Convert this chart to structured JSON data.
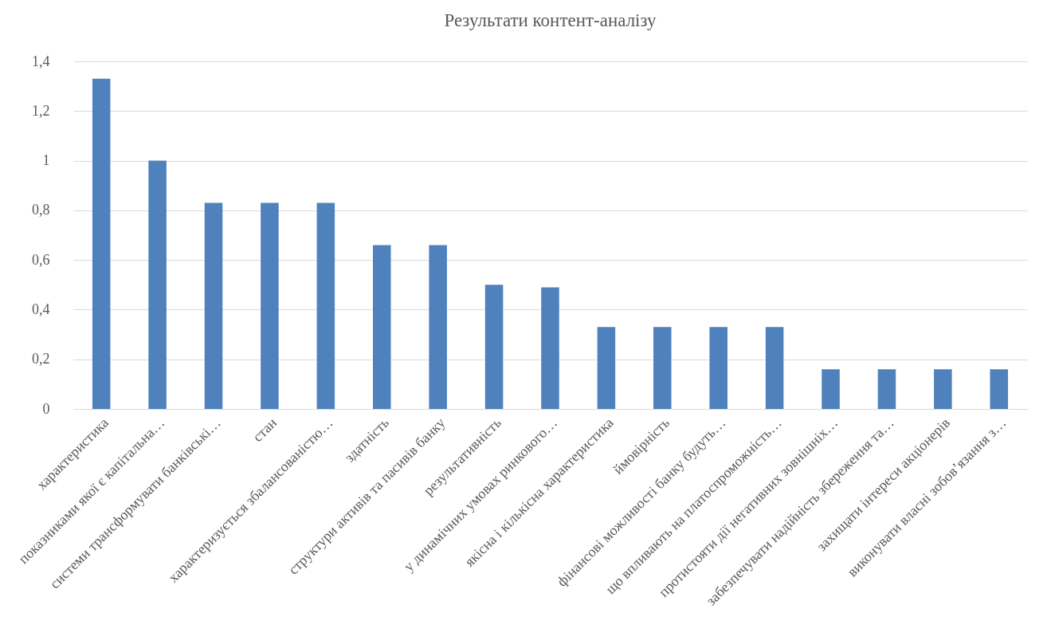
{
  "chart_data": {
    "type": "bar",
    "title": "Результати контент-аналізу",
    "categories": [
      "характеристика",
      "показниками якої є капітальна…",
      "системи трансформувати банківські…",
      "стан",
      "характеризується збалансованістю…",
      "здатність",
      "структури активів та пасивів банку",
      "результативність",
      "у динамічних умовах ринкового…",
      "якісна і кількісна характеристика",
      "ймовірність",
      "фінансові можливості банку будуть…",
      "що впливають на платоспроможність…",
      "протистояти дії негативних зовнішніх…",
      "забезпечувати надійність збереження та…",
      "захищати інтереси акціонерів",
      "виконувати власні зобов’язання з…"
    ],
    "values": [
      1.33,
      1.0,
      0.83,
      0.83,
      0.83,
      0.66,
      0.66,
      0.5,
      0.49,
      0.33,
      0.33,
      0.33,
      0.33,
      0.16,
      0.16,
      0.16,
      0.16
    ],
    "color": "#4f81bd",
    "ylim": [
      0,
      1.4
    ],
    "yticks": [
      0,
      {
        "value": 0.2,
        "label": "0,2"
      },
      {
        "value": 0.4,
        "label": "0,4"
      },
      {
        "value": 0.6,
        "label": "0,6"
      },
      {
        "value": 0.8,
        "label": "0,8"
      },
      1,
      {
        "value": 1.2,
        "label": "1,2"
      },
      {
        "value": 1.4,
        "label": "1,4"
      }
    ],
    "grid": "y"
  }
}
